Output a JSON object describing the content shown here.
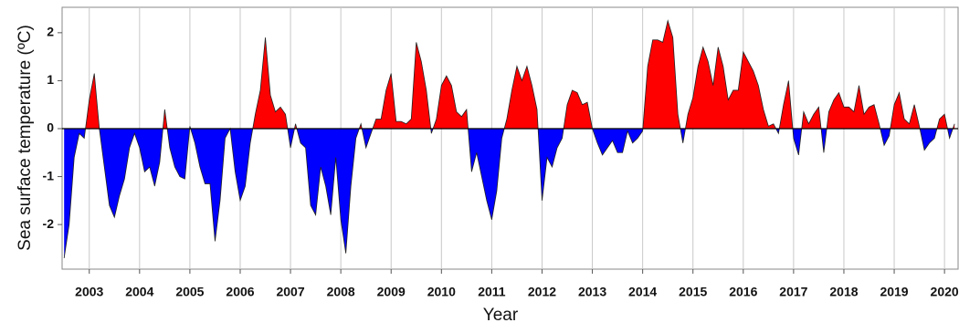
{
  "chart_data": {
    "type": "area",
    "x_label": "Year",
    "y_label": "Sea surface temperature (ºC)",
    "color_above": "#ff0000",
    "color_below": "#0000ff",
    "grid": true,
    "xlim": [
      2002.46,
      2020.27
    ],
    "xticks": [
      2003,
      2004,
      2005,
      2006,
      2007,
      2008,
      2009,
      2010,
      2011,
      2012,
      2013,
      2014,
      2015,
      2016,
      2017,
      2018,
      2019,
      2020
    ],
    "ylim": [
      -2.93,
      2.53
    ],
    "yticks": [
      -2,
      -1,
      0,
      1,
      2
    ],
    "x": [
      2002.5,
      2002.6,
      2002.7,
      2002.8,
      2002.9,
      2003.0,
      2003.1,
      2003.2,
      2003.3,
      2003.4,
      2003.5,
      2003.6,
      2003.7,
      2003.8,
      2003.9,
      2004.0,
      2004.1,
      2004.2,
      2004.3,
      2004.4,
      2004.5,
      2004.6,
      2004.7,
      2004.8,
      2004.9,
      2005.0,
      2005.1,
      2005.2,
      2005.3,
      2005.4,
      2005.5,
      2005.6,
      2005.7,
      2005.8,
      2005.9,
      2006.0,
      2006.1,
      2006.2,
      2006.3,
      2006.4,
      2006.5,
      2006.6,
      2006.7,
      2006.8,
      2006.9,
      2007.0,
      2007.1,
      2007.2,
      2007.3,
      2007.4,
      2007.5,
      2007.6,
      2007.7,
      2007.8,
      2007.9,
      2008.0,
      2008.1,
      2008.2,
      2008.3,
      2008.4,
      2008.5,
      2008.6,
      2008.7,
      2008.8,
      2008.9,
      2009.0,
      2009.1,
      2009.2,
      2009.3,
      2009.4,
      2009.5,
      2009.6,
      2009.7,
      2009.8,
      2009.9,
      2010.0,
      2010.1,
      2010.2,
      2010.3,
      2010.4,
      2010.5,
      2010.6,
      2010.7,
      2010.8,
      2010.9,
      2011.0,
      2011.1,
      2011.2,
      2011.3,
      2011.4,
      2011.5,
      2011.6,
      2011.7,
      2011.8,
      2011.9,
      2012.0,
      2012.1,
      2012.2,
      2012.3,
      2012.4,
      2012.5,
      2012.6,
      2012.7,
      2012.8,
      2012.9,
      2013.0,
      2013.1,
      2013.2,
      2013.3,
      2013.4,
      2013.5,
      2013.6,
      2013.7,
      2013.8,
      2013.9,
      2014.0,
      2014.1,
      2014.2,
      2014.3,
      2014.4,
      2014.5,
      2014.6,
      2014.7,
      2014.8,
      2014.9,
      2015.0,
      2015.1,
      2015.2,
      2015.3,
      2015.4,
      2015.5,
      2015.6,
      2015.7,
      2015.8,
      2015.9,
      2016.0,
      2016.1,
      2016.2,
      2016.3,
      2016.4,
      2016.5,
      2016.6,
      2016.7,
      2016.8,
      2016.9,
      2017.0,
      2017.1,
      2017.2,
      2017.3,
      2017.4,
      2017.5,
      2017.6,
      2017.7,
      2017.8,
      2017.9,
      2018.0,
      2018.1,
      2018.2,
      2018.3,
      2018.4,
      2018.5,
      2018.6,
      2018.7,
      2018.8,
      2018.9,
      2019.0,
      2019.1,
      2019.2,
      2019.3,
      2019.4,
      2019.5,
      2019.6,
      2019.7,
      2019.8,
      2019.9,
      2020.0,
      2020.1,
      2020.2
    ],
    "values": [
      -2.7,
      -2.0,
      -0.6,
      -0.1,
      -0.2,
      0.6,
      1.15,
      0.0,
      -0.8,
      -1.6,
      -1.85,
      -1.4,
      -1.05,
      -0.4,
      -0.1,
      -0.4,
      -0.9,
      -0.8,
      -1.2,
      -0.7,
      0.4,
      -0.4,
      -0.8,
      -1.0,
      -1.05,
      0.05,
      -0.3,
      -0.8,
      -1.15,
      -1.15,
      -2.35,
      -1.5,
      -0.2,
      0.0,
      -0.9,
      -1.5,
      -1.2,
      -0.3,
      0.3,
      0.8,
      1.9,
      0.7,
      0.35,
      0.45,
      0.3,
      -0.4,
      0.1,
      -0.3,
      -0.4,
      -1.6,
      -1.8,
      -0.8,
      -1.2,
      -1.8,
      -0.6,
      -1.9,
      -2.6,
      -1.2,
      -0.2,
      0.1,
      -0.4,
      -0.1,
      0.2,
      0.2,
      0.8,
      1.15,
      0.15,
      0.15,
      0.1,
      0.2,
      1.8,
      1.4,
      0.8,
      -0.1,
      0.2,
      0.9,
      1.1,
      0.9,
      0.35,
      0.25,
      0.4,
      -0.9,
      -0.5,
      -1.0,
      -1.5,
      -1.9,
      -1.3,
      -0.2,
      0.2,
      0.8,
      1.3,
      1.0,
      1.3,
      0.9,
      0.4,
      -1.5,
      -0.6,
      -0.8,
      -0.4,
      -0.2,
      0.5,
      0.8,
      0.75,
      0.5,
      0.55,
      0.0,
      -0.3,
      -0.55,
      -0.4,
      -0.25,
      -0.5,
      -0.5,
      -0.05,
      -0.3,
      -0.2,
      -0.05,
      1.3,
      1.85,
      1.85,
      1.8,
      2.25,
      1.9,
      0.3,
      -0.3,
      0.3,
      0.65,
      1.3,
      1.7,
      1.4,
      0.9,
      1.7,
      1.3,
      0.6,
      0.8,
      0.8,
      1.6,
      1.4,
      1.2,
      0.9,
      0.4,
      0.05,
      0.1,
      -0.1,
      0.5,
      1.0,
      -0.2,
      -0.55,
      0.35,
      0.1,
      0.3,
      0.45,
      -0.5,
      0.35,
      0.6,
      0.75,
      0.45,
      0.45,
      0.35,
      0.9,
      0.3,
      0.45,
      0.5,
      0.1,
      -0.35,
      -0.15,
      0.5,
      0.75,
      0.2,
      0.1,
      0.5,
      0.05,
      -0.45,
      -0.3,
      -0.2,
      0.2,
      0.3,
      -0.2,
      0.1
    ]
  }
}
